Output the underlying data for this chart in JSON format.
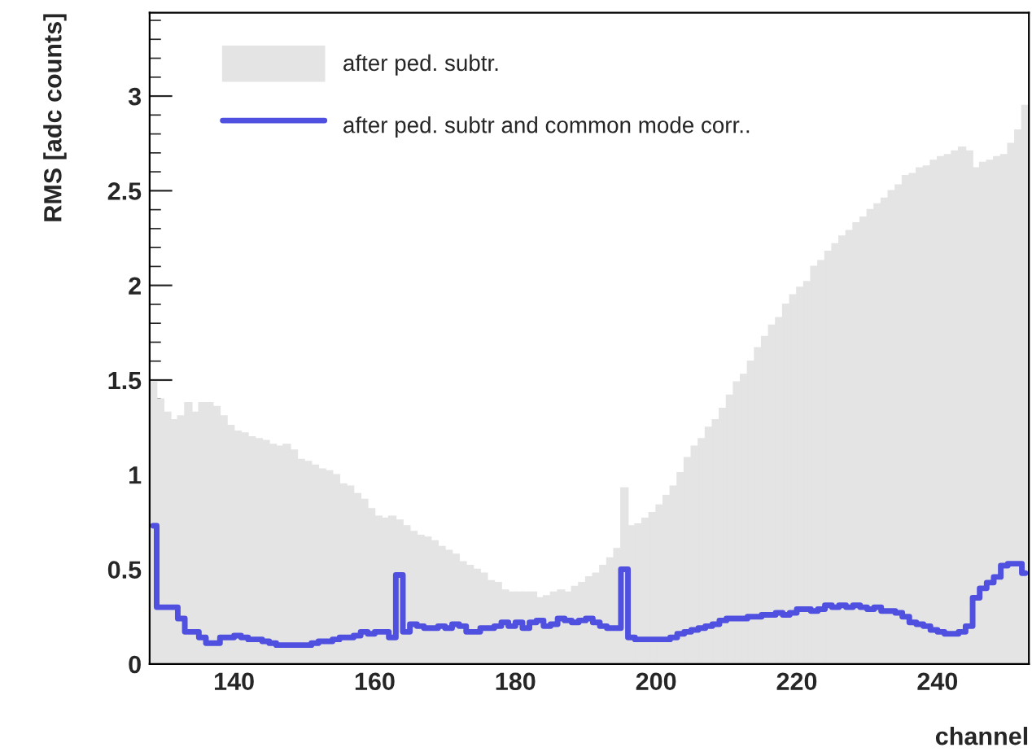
{
  "chart_data": {
    "type": "histogram",
    "xlabel": "channel",
    "ylabel": "RMS [adc counts]",
    "bins": [
      128,
      129,
      130,
      131,
      132,
      133,
      134,
      135,
      136,
      137,
      138,
      139,
      140,
      141,
      142,
      143,
      144,
      145,
      146,
      147,
      148,
      149,
      150,
      151,
      152,
      153,
      154,
      155,
      156,
      157,
      158,
      159,
      160,
      161,
      162,
      163,
      164,
      165,
      166,
      167,
      168,
      169,
      170,
      171,
      172,
      173,
      174,
      175,
      176,
      177,
      178,
      179,
      180,
      181,
      182,
      183,
      184,
      185,
      186,
      187,
      188,
      189,
      190,
      191,
      192,
      193,
      194,
      195,
      196,
      197,
      198,
      199,
      200,
      201,
      202,
      203,
      204,
      205,
      206,
      207,
      208,
      209,
      210,
      211,
      212,
      213,
      214,
      215,
      216,
      217,
      218,
      219,
      220,
      221,
      222,
      223,
      224,
      225,
      226,
      227,
      228,
      229,
      230,
      231,
      232,
      233,
      234,
      235,
      236,
      237,
      238,
      239,
      240,
      241,
      242,
      243,
      244,
      245,
      246,
      247,
      248,
      249,
      250,
      251,
      252,
      253
    ],
    "series": [
      {
        "name": "after ped. subtr.",
        "color": "#e4e4e4",
        "values": [
          1.49,
          1.4,
          1.33,
          1.29,
          1.31,
          1.38,
          1.33,
          1.38,
          1.38,
          1.36,
          1.31,
          1.26,
          1.23,
          1.22,
          1.2,
          1.19,
          1.18,
          1.16,
          1.15,
          1.16,
          1.13,
          1.08,
          1.07,
          1.05,
          1.03,
          1.02,
          1.0,
          0.95,
          0.94,
          0.9,
          0.87,
          0.82,
          0.78,
          0.77,
          0.78,
          0.76,
          0.73,
          0.7,
          0.68,
          0.67,
          0.65,
          0.62,
          0.6,
          0.58,
          0.54,
          0.52,
          0.5,
          0.48,
          0.44,
          0.43,
          0.39,
          0.38,
          0.38,
          0.38,
          0.38,
          0.35,
          0.36,
          0.38,
          0.39,
          0.38,
          0.41,
          0.43,
          0.46,
          0.48,
          0.52,
          0.56,
          0.61,
          0.93,
          0.73,
          0.74,
          0.77,
          0.8,
          0.84,
          0.89,
          0.94,
          1.01,
          1.09,
          1.15,
          1.19,
          1.25,
          1.29,
          1.35,
          1.42,
          1.49,
          1.53,
          1.6,
          1.67,
          1.73,
          1.79,
          1.83,
          1.9,
          1.95,
          1.99,
          2.02,
          2.1,
          2.13,
          2.18,
          2.22,
          2.26,
          2.29,
          2.33,
          2.36,
          2.4,
          2.43,
          2.46,
          2.5,
          2.53,
          2.58,
          2.59,
          2.62,
          2.63,
          2.66,
          2.68,
          2.69,
          2.71,
          2.73,
          2.71,
          2.62,
          2.65,
          2.66,
          2.68,
          2.69,
          2.75,
          2.82,
          2.95
        ]
      },
      {
        "name": "after ped. subtr and common mode corr..",
        "type": "step",
        "color": "#5050e0",
        "x": [
          128.5,
          129.5,
          130.5,
          131.5,
          132.5,
          133.5,
          134.5,
          135.5,
          136.5,
          137.5,
          138.5,
          139.5,
          140.5,
          141.5,
          142.5,
          143.5,
          144.5,
          145.5,
          146.5,
          147.5,
          148.5,
          149.5,
          150.5,
          151.5,
          152.5,
          153.5,
          154.5,
          155.5,
          156.5,
          157.5,
          158.5,
          159.5,
          160.5,
          161.5,
          162.5,
          163.5,
          164.5,
          165.5,
          166.5,
          167.5,
          168.5,
          169.5,
          170.5,
          171.5,
          172.5,
          173.5,
          174.5,
          175.5,
          176.5,
          177.5,
          178.5,
          179.5,
          180.5,
          181.5,
          182.5,
          183.5,
          184.5,
          185.5,
          186.5,
          187.5,
          188.5,
          189.5,
          190.5,
          191.5,
          192.5,
          193.5,
          194.5,
          195.5,
          196.5,
          197.5,
          198.5,
          199.5,
          200.5,
          201.5,
          202.5,
          203.5,
          204.5,
          205.5,
          206.5,
          207.5,
          208.5,
          209.5,
          210.5,
          211.5,
          212.5,
          213.5,
          214.5,
          215.5,
          216.5,
          217.5,
          218.5,
          219.5,
          220.5,
          221.5,
          222.5,
          223.5,
          224.5,
          225.5,
          226.5,
          227.5,
          228.5,
          229.5,
          230.5,
          231.5,
          232.5,
          233.5,
          234.5,
          235.5,
          236.5,
          237.5,
          238.5,
          239.5,
          240.5,
          241.5,
          242.5,
          243.5,
          244.5,
          245.5,
          246.5,
          247.5,
          248.5,
          249.5,
          250.5,
          251.5,
          252.5
        ],
        "values": [
          0.73,
          0.3,
          0.3,
          0.3,
          0.24,
          0.17,
          0.17,
          0.14,
          0.11,
          0.11,
          0.14,
          0.14,
          0.15,
          0.14,
          0.13,
          0.13,
          0.12,
          0.11,
          0.1,
          0.1,
          0.1,
          0.1,
          0.1,
          0.11,
          0.12,
          0.12,
          0.13,
          0.14,
          0.14,
          0.15,
          0.17,
          0.16,
          0.17,
          0.17,
          0.14,
          0.47,
          0.17,
          0.21,
          0.2,
          0.19,
          0.19,
          0.2,
          0.19,
          0.21,
          0.2,
          0.17,
          0.17,
          0.19,
          0.19,
          0.2,
          0.22,
          0.2,
          0.22,
          0.19,
          0.22,
          0.23,
          0.2,
          0.21,
          0.24,
          0.23,
          0.22,
          0.23,
          0.24,
          0.22,
          0.2,
          0.19,
          0.19,
          0.5,
          0.14,
          0.13,
          0.13,
          0.13,
          0.13,
          0.13,
          0.14,
          0.16,
          0.17,
          0.18,
          0.19,
          0.2,
          0.21,
          0.23,
          0.24,
          0.24,
          0.24,
          0.25,
          0.25,
          0.26,
          0.26,
          0.27,
          0.26,
          0.27,
          0.29,
          0.29,
          0.28,
          0.29,
          0.31,
          0.3,
          0.31,
          0.3,
          0.31,
          0.3,
          0.29,
          0.3,
          0.28,
          0.28,
          0.27,
          0.25,
          0.22,
          0.21,
          0.2,
          0.18,
          0.17,
          0.16,
          0.16,
          0.17,
          0.2,
          0.35,
          0.4,
          0.43,
          0.46,
          0.52,
          0.53,
          0.53,
          0.48
        ]
      }
    ],
    "xlim": [
      128,
      253
    ],
    "xticks": [
      140,
      160,
      180,
      200,
      220,
      240
    ],
    "ylim": [
      0,
      3.44
    ],
    "yticks": [
      0,
      0.5,
      1,
      1.5,
      2,
      2.5,
      3
    ],
    "grid": false,
    "legend": "top left"
  }
}
